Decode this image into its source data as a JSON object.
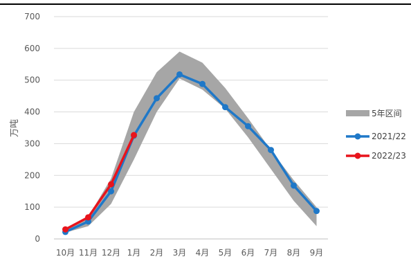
{
  "chart_data": {
    "type": "area",
    "title": "",
    "ylabel": "万吨",
    "xlabel": "",
    "categories": [
      "10月",
      "11月",
      "12月",
      "1月",
      "2月",
      "3月",
      "4月",
      "5月",
      "6月",
      "7月",
      "8月",
      "9月"
    ],
    "ylim": [
      0,
      700
    ],
    "yticks": [
      0,
      100,
      200,
      300,
      400,
      500,
      600,
      700
    ],
    "grid": true,
    "legend_position": "right",
    "band": {
      "name": "5年区间",
      "color": "#a6a6a6",
      "low": [
        20,
        40,
        110,
        250,
        400,
        505,
        470,
        410,
        320,
        220,
        120,
        40
      ],
      "high": [
        30,
        70,
        190,
        400,
        525,
        590,
        555,
        475,
        380,
        280,
        185,
        100
      ]
    },
    "series": [
      {
        "name": "2021/22",
        "color": "#1f78c8",
        "values": [
          22,
          55,
          150,
          325,
          443,
          518,
          488,
          415,
          355,
          280,
          168,
          88
        ]
      },
      {
        "name": "2022/23",
        "color": "#e8141c",
        "values": [
          30,
          68,
          172,
          327,
          null,
          null,
          null,
          null,
          null,
          null,
          null,
          null
        ]
      }
    ]
  }
}
